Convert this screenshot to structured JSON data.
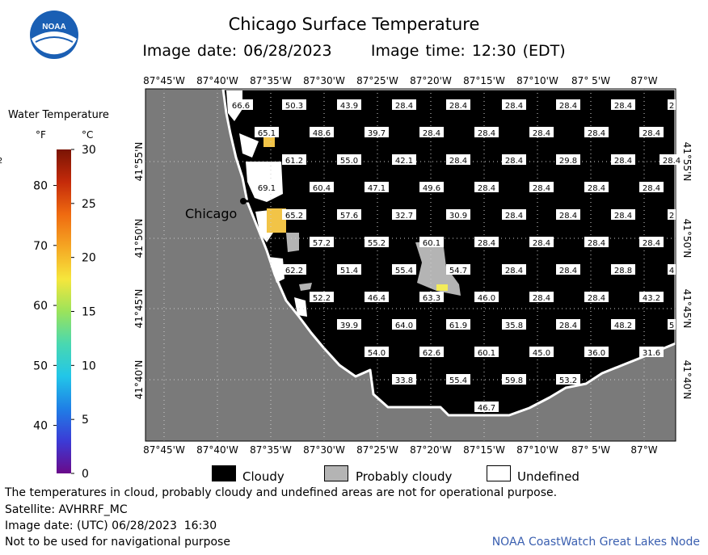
{
  "header": {
    "title": "Chicago Surface Temperature",
    "image_date": "Image date: 06/28/2023",
    "image_time": "Image time: 12:30 (EDT)"
  },
  "logo": {
    "text": "NOAA",
    "icon": "noaa-logo"
  },
  "colorbar": {
    "title": "Water Temperature",
    "unit_f": "°F",
    "unit_c": "°C",
    "f_ticks": [
      "40",
      "50",
      "60",
      "70",
      "80"
    ],
    "c_ticks": [
      "0",
      "5",
      "10",
      "15",
      "20",
      "25",
      "30"
    ],
    "f_range": [
      32,
      86
    ],
    "c_range": [
      0,
      30
    ],
    "gradient": [
      "#6a0a8a",
      "#3b3bd6",
      "#1f7fe6",
      "#22c6e8",
      "#49d8b0",
      "#9be35b",
      "#f6e63c",
      "#f5a623",
      "#ef6a10",
      "#c42a0a",
      "#7a1404"
    ]
  },
  "map": {
    "city_label": "Chicago",
    "lon_labels": [
      "87°45'W",
      "87°40'W",
      "87°35'W",
      "87°30'W",
      "87°25'W",
      "87°20'W",
      "87°15'W",
      "87°10'W",
      "87° 5'W",
      "87°W"
    ],
    "lat_labels": [
      "41°55'N",
      "41°50'N",
      "41°45'N",
      "41°40'N"
    ],
    "colors": {
      "land": "#7a7a7a",
      "cloudy": "#000000",
      "probably_cloudy": "#b4b4b4",
      "undefined": "#ffffff",
      "warm": "#f2c447",
      "yellow": "#f3ec5a"
    },
    "temperature_rows": [
      [
        "66.6",
        "50.3",
        "43.9",
        "28.4",
        "28.4",
        "28.4",
        "28.4",
        "28.4",
        "2"
      ],
      [
        "65.1",
        "48.6",
        "39.7",
        "28.4",
        "28.4",
        "28.4",
        "28.4",
        "28.4"
      ],
      [
        "61.2",
        "55.0",
        "42.1",
        "28.4",
        "28.4",
        "29.8",
        "28.4",
        "28.4",
        "2"
      ],
      [
        "69.1",
        "60.4",
        "47.1",
        "49.6",
        "28.4",
        "28.4",
        "28.4",
        "28.4"
      ],
      [
        "65.2",
        "57.6",
        "32.7",
        "30.9",
        "28.4",
        "28.4",
        "28.4",
        "2"
      ],
      [
        "57.2",
        "55.2",
        "60.1",
        "28.4",
        "28.4",
        "28.4",
        "28.4"
      ],
      [
        "62.2",
        "51.4",
        "55.4",
        "54.7",
        "28.4",
        "28.4",
        "28.8",
        "4"
      ],
      [
        "52.2",
        "46.4",
        "63.3",
        "46.0",
        "28.4",
        "28.4",
        "43.2"
      ],
      [
        "39.9",
        "64.0",
        "61.9",
        "35.8",
        "28.4",
        "48.2",
        "5"
      ],
      [
        "54.0",
        "62.6",
        "60.1",
        "45.0",
        "36.0",
        "31.6"
      ],
      [
        "33.8",
        "55.4",
        "59.8",
        "53.2"
      ],
      [
        "46.7"
      ]
    ]
  },
  "legend": {
    "cloudy": "Cloudy",
    "probably_cloudy": "Probably cloudy",
    "undefined": "Undefined"
  },
  "footer": {
    "disclaimer": "The temperatures in cloud, probably cloudy and undefined areas are not for operational purpose.",
    "satellite": "Satellite: AVHRRF_MC",
    "utc_date": "Image date: (UTC) 06/28/2023  16:30",
    "navigation": "Not to be used for navigational purpose",
    "credit": "NOAA CoastWatch Great Lakes Node"
  }
}
